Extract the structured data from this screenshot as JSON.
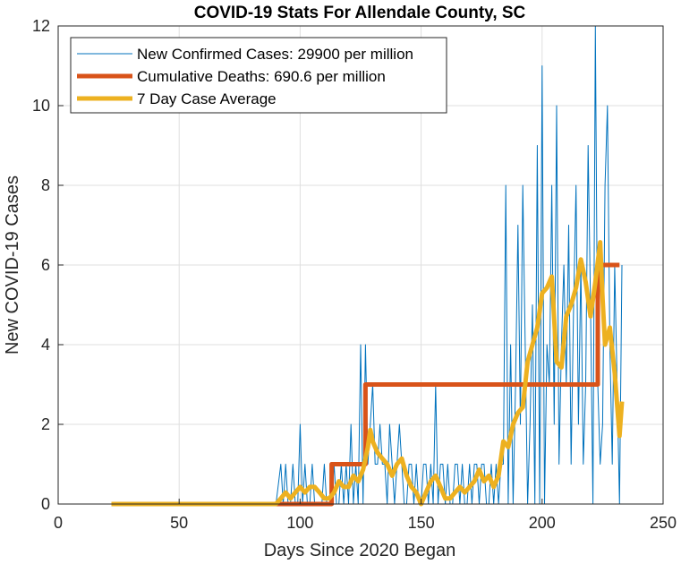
{
  "chart_data": {
    "type": "line",
    "title": "COVID-19 Stats For Allendale County, SC",
    "xlabel": "Days Since 2020 Began",
    "ylabel": "New COVID-19 Cases",
    "xlim": [
      0,
      250
    ],
    "ylim": [
      0,
      12
    ],
    "xticks": [
      0,
      50,
      100,
      150,
      200,
      250
    ],
    "yticks": [
      0,
      2,
      4,
      6,
      8,
      10,
      12
    ],
    "grid": true,
    "legend_position": "top-left",
    "series": [
      {
        "name": "New Confirmed Cases: 29900 per million",
        "color": "#0072BD",
        "line_style": "thin",
        "x": [
          22,
          30,
          40,
          50,
          60,
          70,
          80,
          90,
          92,
          93,
          94,
          95,
          96,
          97,
          98,
          99,
          100,
          101,
          102,
          103,
          104,
          105,
          106,
          107,
          108,
          109,
          110,
          111,
          112,
          113,
          114,
          115,
          116,
          117,
          118,
          119,
          120,
          121,
          122,
          123,
          124,
          125,
          126,
          127,
          128,
          129,
          130,
          131,
          132,
          133,
          134,
          135,
          136,
          137,
          138,
          139,
          140,
          141,
          142,
          143,
          144,
          145,
          146,
          147,
          148,
          149,
          150,
          151,
          152,
          153,
          154,
          155,
          156,
          157,
          158,
          159,
          160,
          161,
          162,
          163,
          164,
          165,
          166,
          167,
          168,
          169,
          170,
          171,
          172,
          173,
          174,
          175,
          176,
          177,
          178,
          179,
          180,
          181,
          182,
          183,
          184,
          185,
          186,
          187,
          188,
          189,
          190,
          191,
          192,
          193,
          194,
          195,
          196,
          197,
          198,
          199,
          200,
          201,
          202,
          203,
          204,
          205,
          206,
          207,
          208,
          209,
          210,
          211,
          212,
          213,
          214,
          215,
          216,
          217,
          218,
          219,
          220,
          221,
          222,
          223,
          224,
          225,
          226,
          227,
          228,
          229,
          230,
          231,
          232,
          233
        ],
        "y": [
          0,
          0,
          0,
          0,
          0,
          0,
          0,
          0,
          1,
          0,
          1,
          0,
          0,
          1,
          0,
          0,
          2,
          0,
          1,
          0,
          0,
          1,
          0,
          0,
          0,
          0,
          1,
          0,
          0,
          0,
          1,
          0,
          0,
          1,
          0,
          1,
          0,
          2,
          0,
          1,
          0,
          4,
          0,
          4,
          1,
          2,
          3,
          1,
          1,
          2,
          1,
          1,
          0,
          2,
          1,
          0,
          1,
          2,
          1,
          0,
          0,
          1,
          1,
          0,
          1,
          0,
          0,
          1,
          1,
          0,
          1,
          0,
          3,
          0,
          1,
          1,
          0,
          1,
          0,
          0,
          1,
          1,
          0,
          1,
          0,
          0,
          1,
          0,
          1,
          1,
          0,
          1,
          1,
          0,
          0,
          1,
          0,
          1,
          0,
          1,
          1,
          8,
          0,
          4,
          0,
          3,
          7,
          2,
          8,
          4,
          0,
          2,
          5,
          0,
          9,
          0,
          11,
          0,
          4,
          3,
          8,
          2,
          10,
          1,
          4,
          6,
          3,
          7,
          1,
          5,
          8,
          2,
          6,
          1,
          3,
          9,
          5,
          0,
          12,
          3,
          1,
          2,
          8,
          10,
          4,
          1,
          6,
          3,
          0,
          6
        ]
      },
      {
        "name": "Cumulative Deaths: 690.6 per million",
        "color": "#D95319",
        "line_style": "thick",
        "x": [
          90,
          113,
          113,
          127,
          127,
          223,
          223,
          232
        ],
        "y": [
          0,
          0,
          1,
          1,
          3,
          3,
          6,
          6
        ]
      },
      {
        "name": "7 Day Case Average",
        "color": "#EDB120",
        "line_style": "thick",
        "x": [
          22,
          30,
          40,
          50,
          60,
          70,
          80,
          90,
          92,
          94,
          96,
          98,
          100,
          102,
          104,
          106,
          108,
          110,
          112,
          114,
          116,
          118,
          120,
          122,
          124,
          126,
          128,
          129,
          130,
          132,
          134,
          136,
          138,
          140,
          142,
          144,
          146,
          148,
          150,
          152,
          154,
          156,
          158,
          160,
          162,
          164,
          166,
          168,
          170,
          172,
          174,
          176,
          178,
          180,
          182,
          184,
          186,
          188,
          190,
          192,
          194,
          196,
          198,
          200,
          202,
          204,
          206,
          208,
          210,
          212,
          214,
          216,
          218,
          220,
          222,
          224,
          225,
          226,
          228,
          230,
          232,
          233
        ],
        "y": [
          0,
          0,
          0,
          0,
          0,
          0,
          0,
          0,
          0.14,
          0.29,
          0.14,
          0.29,
          0.43,
          0.29,
          0.43,
          0.43,
          0.29,
          0.14,
          0.14,
          0.29,
          0.57,
          0.43,
          0.43,
          0.71,
          0.57,
          0.86,
          1.43,
          1.86,
          1.57,
          1.29,
          1.14,
          1,
          0.71,
          1,
          1.14,
          0.71,
          0.43,
          0.29,
          0,
          0.29,
          0.57,
          0.71,
          0.43,
          0.14,
          0.14,
          0.29,
          0.43,
          0.29,
          0.43,
          0.57,
          0.86,
          0.57,
          0.71,
          0.43,
          0.71,
          1.57,
          1.43,
          2,
          2.29,
          2.43,
          3.57,
          4,
          4.43,
          5.29,
          5.43,
          5.71,
          3.57,
          3.43,
          4.71,
          5,
          5.43,
          6.14,
          5.57,
          4.71,
          5.57,
          6.57,
          5.14,
          4,
          4.43,
          3.29,
          1.71,
          2.57
        ]
      }
    ]
  }
}
